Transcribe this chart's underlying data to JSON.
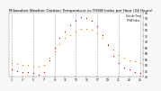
{
  "title": "Milwaukee Weather Outdoor Temperature vs THSW Index per Hour (24 Hours)",
  "title_fontsize": 3.0,
  "background_color": "#f8f8f8",
  "plot_bg_color": "#ffffff",
  "grid_color": "#aaaaaa",
  "hours": [
    1,
    2,
    3,
    4,
    5,
    6,
    7,
    8,
    9,
    10,
    11,
    12,
    13,
    14,
    15,
    16,
    17,
    18,
    19,
    20,
    21,
    22,
    23,
    24,
    25
  ],
  "temp_values": [
    52,
    51,
    50,
    50,
    49,
    49,
    50,
    56,
    62,
    68,
    73,
    76,
    79,
    81,
    81,
    80,
    77,
    73,
    68,
    63,
    59,
    56,
    54,
    53,
    52
  ],
  "thsw_values": [
    46,
    45,
    44,
    44,
    43,
    42,
    44,
    54,
    65,
    73,
    79,
    84,
    88,
    91,
    90,
    88,
    83,
    76,
    67,
    58,
    52,
    48,
    46,
    44,
    43
  ],
  "temp_color": "#ff8800",
  "thsw_color": "#cc0000",
  "black_color": "#000000",
  "marker_size": 1.5,
  "ylim": [
    40,
    95
  ],
  "ytick_values": [
    40,
    45,
    50,
    55,
    60,
    65,
    70,
    75,
    80,
    85,
    90,
    95
  ],
  "xtick_values": [
    1,
    3,
    5,
    7,
    9,
    11,
    13,
    15,
    17,
    19,
    21,
    23,
    25
  ],
  "vgrid_positions": [
    1,
    5,
    9,
    13,
    17,
    21,
    25
  ],
  "legend_labels": [
    "Outside Temp",
    "THSW Index"
  ],
  "legend_colors": [
    "#ff8800",
    "#cc0000"
  ]
}
